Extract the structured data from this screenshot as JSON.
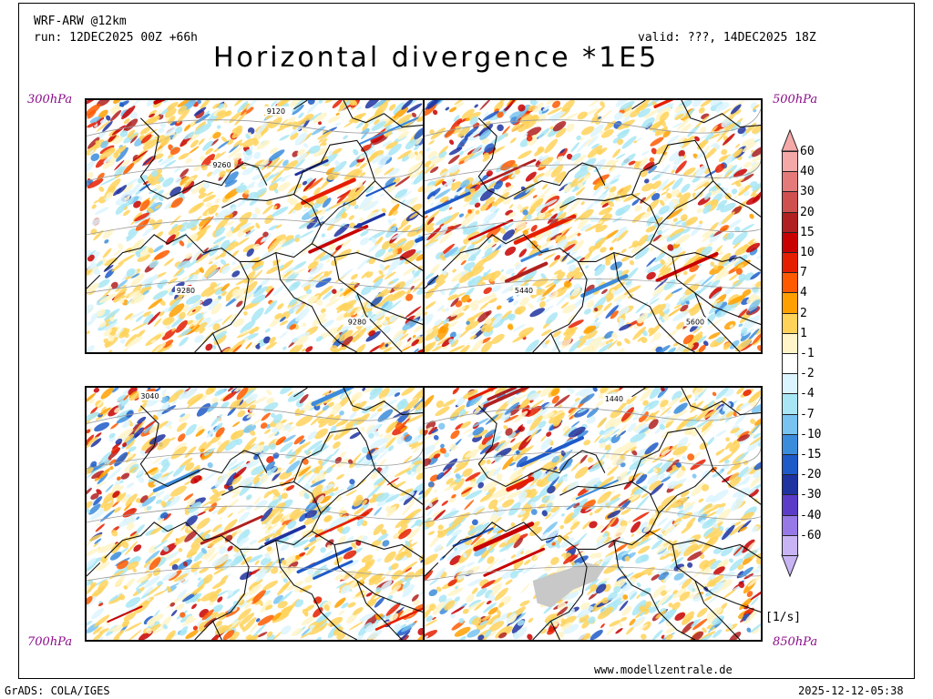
{
  "header": {
    "model": "WRF-ARW @12km",
    "run": "run: 12DEC2025 00Z +66h",
    "valid": "valid: ???, 14DEC2025 18Z",
    "title": "Horizontal divergence *1E5"
  },
  "panels": [
    {
      "level": "300hPa",
      "contours": [
        "9120",
        "9260",
        "9280",
        "9280"
      ]
    },
    {
      "level": "500hPa",
      "contours": [
        "5440",
        "5600"
      ]
    },
    {
      "level": "700hPa",
      "contours": [
        "3040"
      ]
    },
    {
      "level": "850hPa",
      "contours": [
        "1440"
      ]
    }
  ],
  "colorbar": {
    "unit": "[1/s]",
    "levels": [
      {
        "label": "60",
        "color": "#f4a8a8"
      },
      {
        "label": "40",
        "color": "#e57a7a"
      },
      {
        "label": "30",
        "color": "#d05050"
      },
      {
        "label": "20",
        "color": "#b02020"
      },
      {
        "label": "15",
        "color": "#c80000"
      },
      {
        "label": "10",
        "color": "#e61e00"
      },
      {
        "label": "7",
        "color": "#ff5a00"
      },
      {
        "label": "4",
        "color": "#ffa000"
      },
      {
        "label": "2",
        "color": "#ffd25a"
      },
      {
        "label": "1",
        "color": "#fff5c8"
      },
      {
        "label": "-1",
        "color": "#ffffff"
      },
      {
        "label": "-2",
        "color": "#dcf4ff"
      },
      {
        "label": "-4",
        "color": "#a8e6f5"
      },
      {
        "label": "-7",
        "color": "#78c3f0"
      },
      {
        "label": "-10",
        "color": "#3c8cdc"
      },
      {
        "label": "-15",
        "color": "#1e5ac8"
      },
      {
        "label": "-20",
        "color": "#1e32a0"
      },
      {
        "label": "-30",
        "color": "#5a3cc8"
      },
      {
        "label": "-40",
        "color": "#9678e6"
      },
      {
        "label": "-60",
        "color": "#c8b4f5"
      }
    ]
  },
  "footer": {
    "website": "www.modellzentrale.de",
    "software": "GrADS: COLA/IGES",
    "timestamp": "2025-12-12-05:38"
  }
}
